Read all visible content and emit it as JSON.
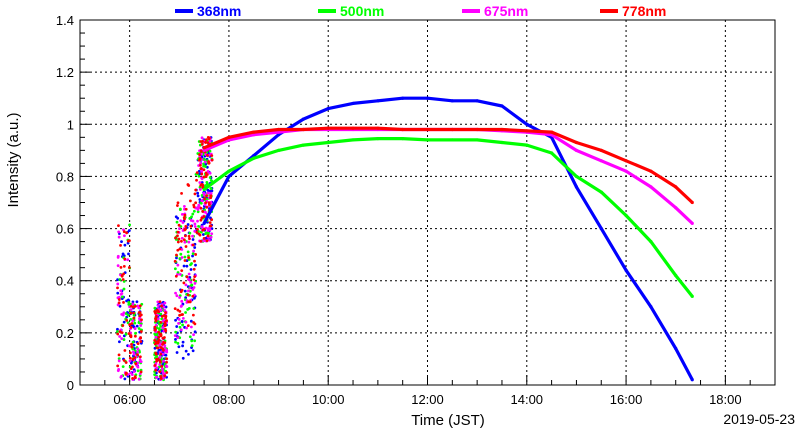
{
  "chart_data": {
    "type": "line",
    "xlabel": "Time (JST)",
    "ylabel": "Intensity (a.u.)",
    "date_label": "2019-05-23",
    "xlim": [
      "05:00",
      "19:00"
    ],
    "ylim": [
      0,
      1.4
    ],
    "x_ticks": [
      "06:00",
      "08:00",
      "10:00",
      "12:00",
      "14:00",
      "16:00",
      "18:00"
    ],
    "y_ticks": [
      "0",
      "0.2",
      "0.4",
      "0.6",
      "0.8",
      "1",
      "1.2",
      "1.4"
    ],
    "grid": true,
    "legend_position": "top",
    "series": [
      {
        "name": "368nm",
        "color": "#0000ff",
        "x": [
          "07:30",
          "08:00",
          "08:30",
          "09:00",
          "09:30",
          "10:00",
          "10:30",
          "11:00",
          "11:30",
          "12:00",
          "12:30",
          "13:00",
          "13:30",
          "14:00",
          "14:30",
          "15:00",
          "15:30",
          "16:00",
          "16:30",
          "17:00",
          "17:20"
        ],
        "values": [
          0.62,
          0.8,
          0.88,
          0.96,
          1.02,
          1.06,
          1.08,
          1.09,
          1.1,
          1.1,
          1.09,
          1.09,
          1.07,
          1.0,
          0.95,
          0.76,
          0.6,
          0.44,
          0.3,
          0.14,
          0.02
        ]
      },
      {
        "name": "500nm",
        "color": "#00ff00",
        "x": [
          "07:30",
          "08:00",
          "08:30",
          "09:00",
          "09:30",
          "10:00",
          "10:30",
          "11:00",
          "11:30",
          "12:00",
          "12:30",
          "13:00",
          "13:30",
          "14:00",
          "14:30",
          "15:00",
          "15:30",
          "16:00",
          "16:30",
          "17:00",
          "17:20"
        ],
        "values": [
          0.75,
          0.82,
          0.87,
          0.9,
          0.92,
          0.93,
          0.94,
          0.945,
          0.945,
          0.94,
          0.94,
          0.94,
          0.93,
          0.92,
          0.89,
          0.8,
          0.74,
          0.65,
          0.55,
          0.42,
          0.34
        ]
      },
      {
        "name": "675nm",
        "color": "#ff00ff",
        "x": [
          "07:30",
          "08:00",
          "08:30",
          "09:00",
          "09:30",
          "10:00",
          "10:30",
          "11:00",
          "11:30",
          "12:00",
          "12:30",
          "13:00",
          "13:30",
          "14:00",
          "14:30",
          "15:00",
          "15:30",
          "16:00",
          "16:30",
          "17:00",
          "17:20"
        ],
        "values": [
          0.9,
          0.94,
          0.96,
          0.97,
          0.98,
          0.98,
          0.98,
          0.98,
          0.98,
          0.98,
          0.98,
          0.98,
          0.975,
          0.97,
          0.96,
          0.9,
          0.86,
          0.82,
          0.76,
          0.68,
          0.62
        ]
      },
      {
        "name": "778nm",
        "color": "#ff0000",
        "x": [
          "07:30",
          "08:00",
          "08:30",
          "09:00",
          "09:30",
          "10:00",
          "10:30",
          "11:00",
          "11:30",
          "12:00",
          "12:30",
          "13:00",
          "13:30",
          "14:00",
          "14:30",
          "15:00",
          "15:30",
          "16:00",
          "16:30",
          "17:00",
          "17:20"
        ],
        "values": [
          0.91,
          0.95,
          0.97,
          0.98,
          0.98,
          0.985,
          0.985,
          0.985,
          0.98,
          0.98,
          0.98,
          0.98,
          0.98,
          0.975,
          0.97,
          0.93,
          0.9,
          0.86,
          0.82,
          0.76,
          0.7
        ]
      }
    ]
  }
}
